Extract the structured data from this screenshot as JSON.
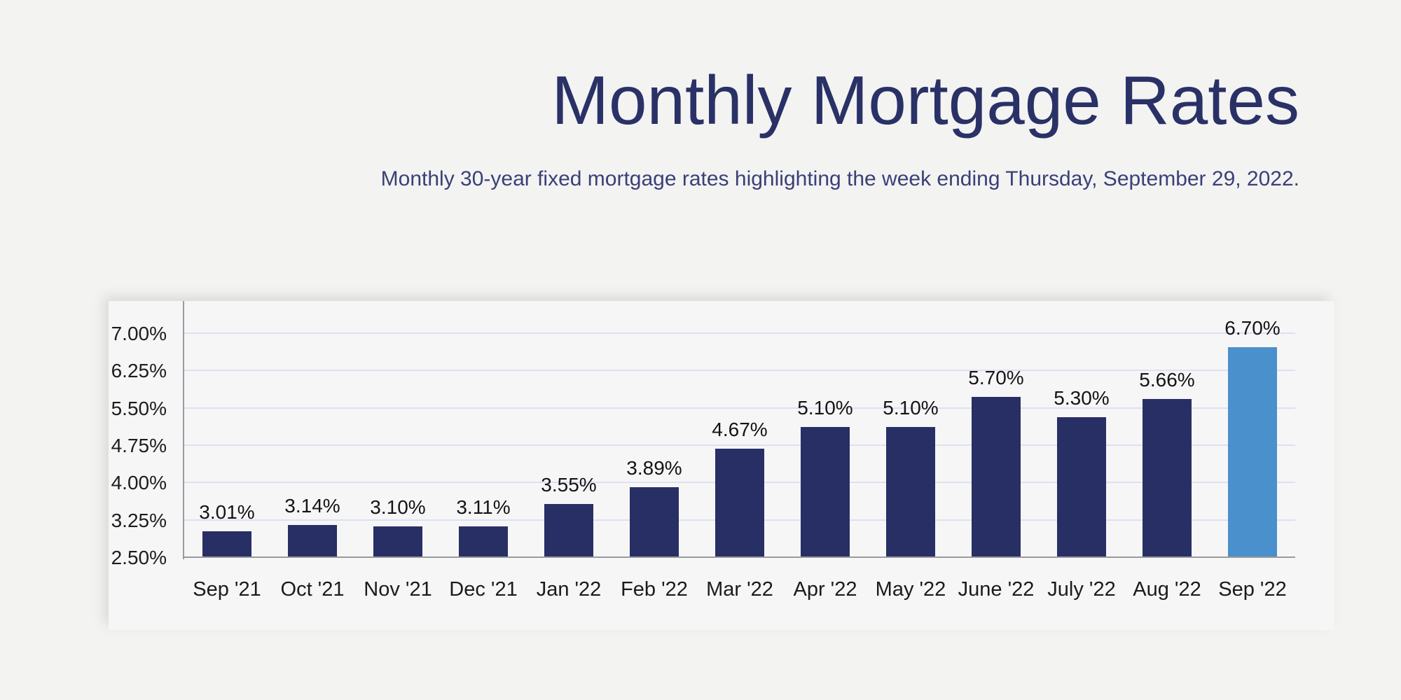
{
  "header": {
    "title": "Monthly Mortgage Rates",
    "subtitle": "Monthly 30-year fixed mortgage rates highlighting the week ending Thursday, September 29, 2022."
  },
  "chart_data": {
    "type": "bar",
    "title": "Monthly Mortgage Rates",
    "subtitle": "Monthly 30-year fixed mortgage rates highlighting the week ending Thursday, September 29, 2022.",
    "categories": [
      "Sep '21",
      "Oct '21",
      "Nov '21",
      "Dec '21",
      "Jan '22",
      "Feb '22",
      "Mar '22",
      "Apr '22",
      "May '22",
      "June '22",
      "July '22",
      "Aug '22",
      "Sep '22"
    ],
    "values": [
      3.01,
      3.14,
      3.1,
      3.11,
      3.55,
      3.89,
      4.67,
      5.1,
      5.1,
      5.7,
      5.3,
      5.66,
      6.7
    ],
    "value_labels": [
      "3.01%",
      "3.14%",
      "3.10%",
      "3.11%",
      "3.55%",
      "3.89%",
      "4.67%",
      "5.10%",
      "5.10%",
      "5.70%",
      "5.30%",
      "5.66%",
      "6.70%"
    ],
    "y_ticks": [
      "2.50%",
      "3.25%",
      "4.00%",
      "4.75%",
      "5.50%",
      "6.25%",
      "7.00%"
    ],
    "y_tick_values": [
      2.5,
      3.25,
      4.0,
      4.75,
      5.5,
      6.25,
      7.0
    ],
    "ylim": [
      2.5,
      7.66
    ],
    "grid": true,
    "legend_position": "none",
    "xlabel": "",
    "ylabel": "",
    "highlight_index": 12,
    "highlight_category": "Sep '22"
  },
  "colors": {
    "background": "#f3f3f2",
    "card": "#f6f6f7",
    "title": "#2a3166",
    "subtitle": "#3a4078",
    "bar": "#272f64",
    "bar_highlight": "#4a90cc",
    "gridline": "#dbe1f0",
    "axis": "#9b9b9e",
    "tick_text": "#1d1d1f",
    "value_text": "#141414"
  }
}
